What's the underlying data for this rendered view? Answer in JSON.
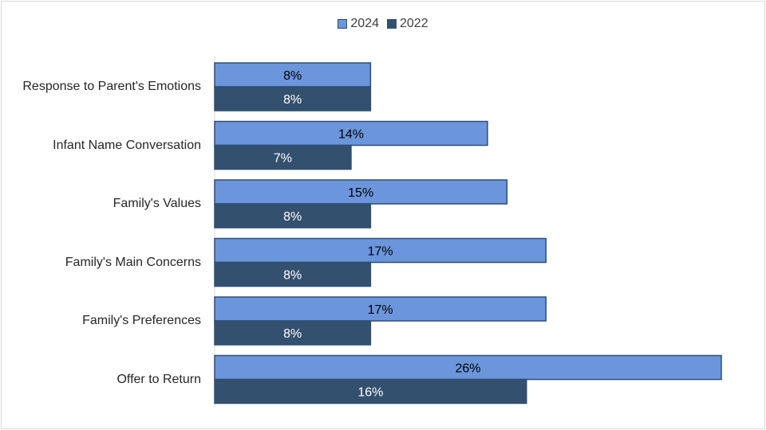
{
  "chart_data": {
    "type": "bar",
    "orientation": "horizontal",
    "categories": [
      "Response to Parent's Emotions",
      "Infant Name Conversation",
      "Family's Values",
      "Family's Main Concerns",
      "Family's Preferences",
      "Offer to Return"
    ],
    "series": [
      {
        "name": "2024",
        "values": [
          8,
          14,
          15,
          17,
          17,
          26
        ],
        "labels": [
          "8%",
          "14%",
          "15%",
          "17%",
          "17%",
          "26%"
        ],
        "color": "#6b96db",
        "label_color": "#000000"
      },
      {
        "name": "2022",
        "values": [
          8,
          7,
          8,
          8,
          8,
          16
        ],
        "labels": [
          "8%",
          "7%",
          "8%",
          "8%",
          "8%",
          "16%"
        ],
        "color": "#34506f",
        "label_color": "#ffffff"
      }
    ],
    "xlim": [
      0,
      26
    ],
    "grid": false,
    "legend_position": "top-center",
    "title": "",
    "xlabel": "",
    "ylabel": ""
  }
}
